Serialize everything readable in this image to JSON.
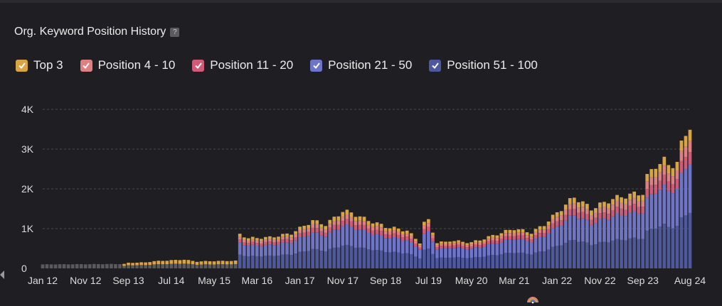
{
  "header": {
    "title": "Org. Keyword Position History",
    "help": "?"
  },
  "colors": {
    "top3": "#d9a441",
    "pos4_10": "#e07f7f",
    "pos11_20": "#d05a78",
    "pos21_50": "#6d74c9",
    "pos51_100": "#4e589f",
    "early": "#5a5a5e",
    "grid": "#4a4a50",
    "axis_text": "#dcdcdc"
  },
  "chart_data": {
    "type": "bar",
    "stacked": true,
    "title": "Org. Keyword Position History",
    "legend": [
      {
        "label": "Top 3",
        "color": "#d9a441"
      },
      {
        "label": "Position 4 - 10",
        "color": "#e07f7f"
      },
      {
        "label": "Position 11 - 20",
        "color": "#d05a78"
      },
      {
        "label": "Position 21 - 50",
        "color": "#6d74c9"
      },
      {
        "label": "Position 51 - 100",
        "color": "#4e589f"
      }
    ],
    "ylim": [
      0,
      4000
    ],
    "yticks": [
      0,
      1000,
      2000,
      3000,
      4000
    ],
    "ytick_labels": [
      "0",
      "1K",
      "2K",
      "3K",
      "4K"
    ],
    "xtick_labels": [
      "Jan 12",
      "Nov 12",
      "Sep 13",
      "Jul 14",
      "May 15",
      "Mar 16",
      "Jan 17",
      "Nov 17",
      "Sep 18",
      "Jul 19",
      "May 20",
      "Mar 21",
      "Jan 22",
      "Nov 22",
      "Sep 23",
      "Aug 24"
    ],
    "xtick_months": [
      0,
      10,
      20,
      30,
      40,
      50,
      60,
      70,
      80,
      90,
      100,
      110,
      120,
      130,
      140,
      151
    ],
    "num_months": 152,
    "anchors": {
      "months": [
        0,
        19,
        20,
        24,
        26,
        33,
        36,
        38,
        45,
        46,
        48,
        53,
        58,
        63,
        66,
        70,
        72,
        75,
        80,
        85,
        88,
        89,
        90,
        92,
        94,
        95,
        100,
        103,
        106,
        110,
        114,
        117,
        120,
        122,
        124,
        128,
        133,
        137,
        140,
        141,
        143,
        145,
        146,
        148,
        149,
        150,
        151
      ],
      "totals": [
        100,
        110,
        140,
        150,
        180,
        220,
        170,
        180,
        190,
        860,
        760,
        780,
        880,
        1200,
        1100,
        1440,
        1400,
        1250,
        1050,
        950,
        650,
        1150,
        1200,
        650,
        660,
        700,
        650,
        750,
        860,
        1000,
        900,
        1100,
        1400,
        1600,
        1800,
        1500,
        1750,
        1850,
        1900,
        2300,
        2600,
        2700,
        2600,
        2650,
        3100,
        3400,
        3600
      ]
    },
    "shares_modern": {
      "top3": 0.08,
      "pos4_10": 0.08,
      "pos11_20": 0.09,
      "pos21_50": 0.35,
      "pos51_100": 0.4
    },
    "note": "Values in keyword counts; bars before Mar 16 shown in early/gray+top3 style"
  }
}
